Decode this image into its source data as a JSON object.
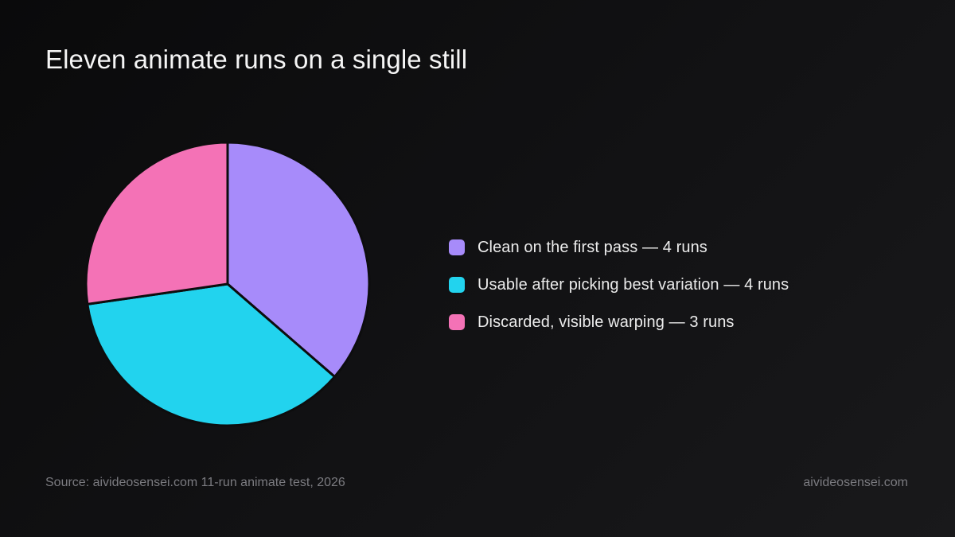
{
  "chart_data": {
    "type": "pie",
    "title": "Eleven animate runs on a single still",
    "categories": [
      "Clean on the first pass — 4 runs",
      "Usable after picking best variation — 4 runs",
      "Discarded, visible warping — 3 runs"
    ],
    "values": [
      4,
      4,
      3
    ],
    "colors": [
      "#a78bfa",
      "#22d3ee",
      "#f472b6"
    ],
    "legend": "right",
    "start_angle": "top",
    "direction": "clockwise",
    "source": "Source: aivideosensei.com 11-run animate test, 2026",
    "brand": "aivideosensei.com"
  }
}
